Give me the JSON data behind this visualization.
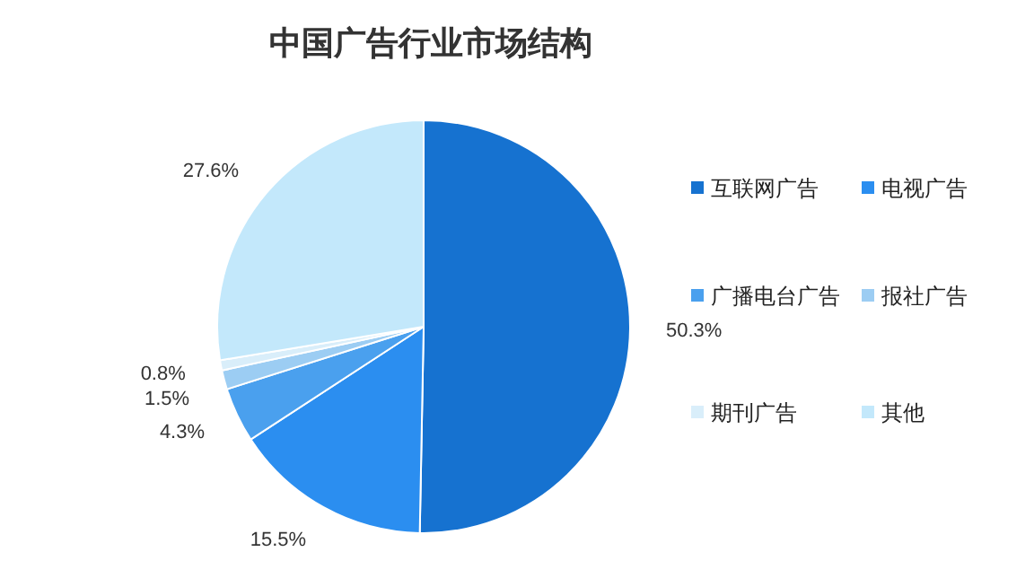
{
  "chart_data": {
    "type": "pie",
    "title": "中国广告行业市场结构",
    "categories": [
      "互联网广告",
      "电视广告",
      "广播电台广告",
      "报社广告",
      "期刊广告",
      "其他"
    ],
    "values": [
      50.3,
      15.5,
      4.3,
      1.5,
      0.8,
      27.6
    ],
    "value_labels": [
      "50.3%",
      "15.5%",
      "4.3%",
      "1.5%",
      "0.8%",
      "27.6%"
    ],
    "colors": [
      "#1672d0",
      "#2b8ef0",
      "#4aa0ee",
      "#9ccdf3",
      "#d9eefa",
      "#c3e8fb"
    ],
    "legend": "right"
  }
}
